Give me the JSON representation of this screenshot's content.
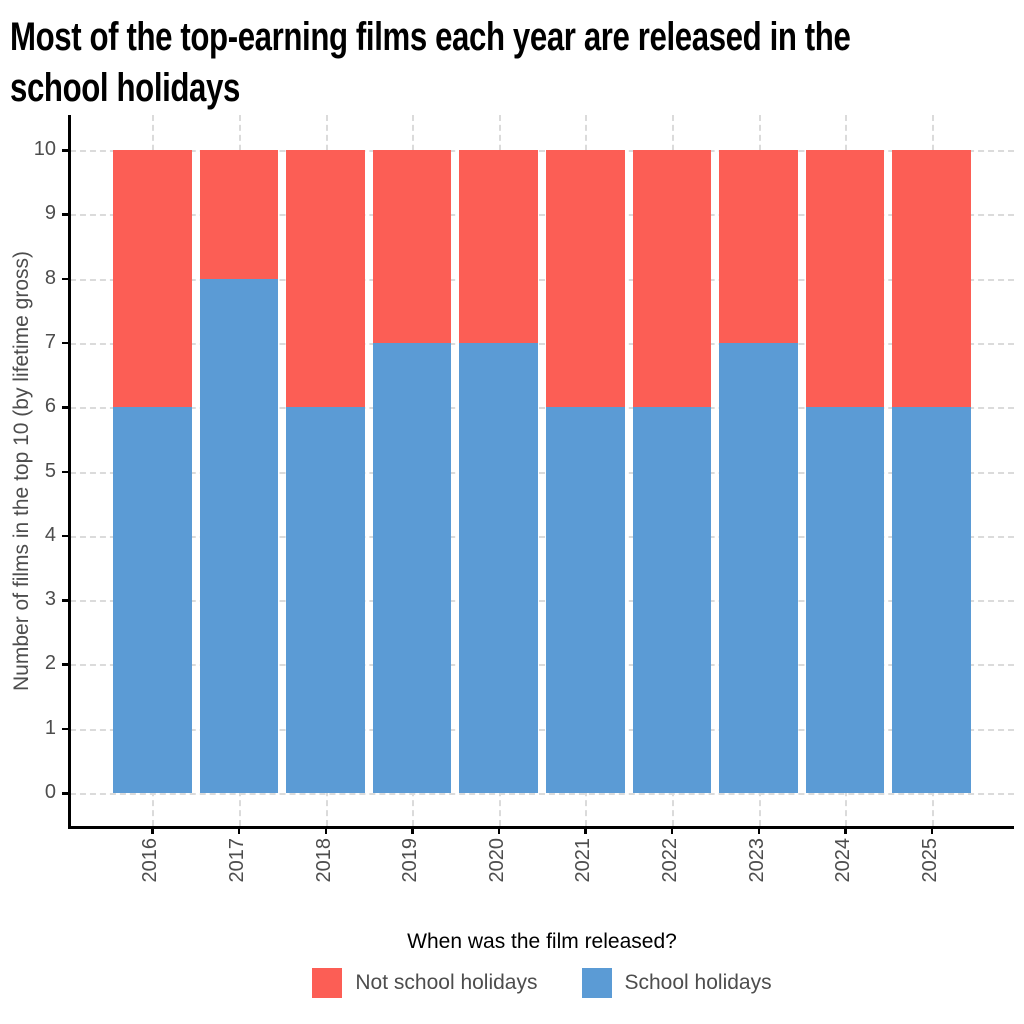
{
  "title": {
    "line1": "Most of the top-earning films each year are released in the",
    "line2": "school holidays"
  },
  "chart_data": {
    "type": "bar",
    "stacked": true,
    "title": "Most of the top-earning films each year are released in the school holidays",
    "categories": [
      "2016",
      "2017",
      "2018",
      "2019",
      "2020",
      "2021",
      "2022",
      "2023",
      "2024",
      "2025"
    ],
    "series": [
      {
        "name": "School holidays",
        "color": "#5b9bd5",
        "values": [
          6,
          8,
          6,
          7,
          7,
          6,
          6,
          7,
          6,
          6
        ]
      },
      {
        "name": "Not school holidays",
        "color": "#fc5e55",
        "values": [
          4,
          2,
          4,
          3,
          3,
          4,
          4,
          3,
          4,
          4
        ]
      }
    ],
    "xlabel": "",
    "ylabel": "Number of films in the top 10 (by lifetime gross)",
    "ylim": [
      0,
      10
    ],
    "yticks": [
      0,
      1,
      2,
      3,
      4,
      5,
      6,
      7,
      8,
      9,
      10
    ],
    "grid": "dashed light-gray horizontal at each integer; dashed vertical at each category center",
    "legend_position": "bottom",
    "legend_title": "When was the film released?",
    "legend_order": [
      "Not school holidays",
      "School holidays"
    ]
  },
  "colors": {
    "bar_red": "#fc5e55",
    "bar_blue": "#5b9bd5",
    "gridline": "#dbdbdb",
    "axis": "#000000",
    "tick_text": "#4d4d4d",
    "title_text": "#000000",
    "background": "#ffffff"
  }
}
